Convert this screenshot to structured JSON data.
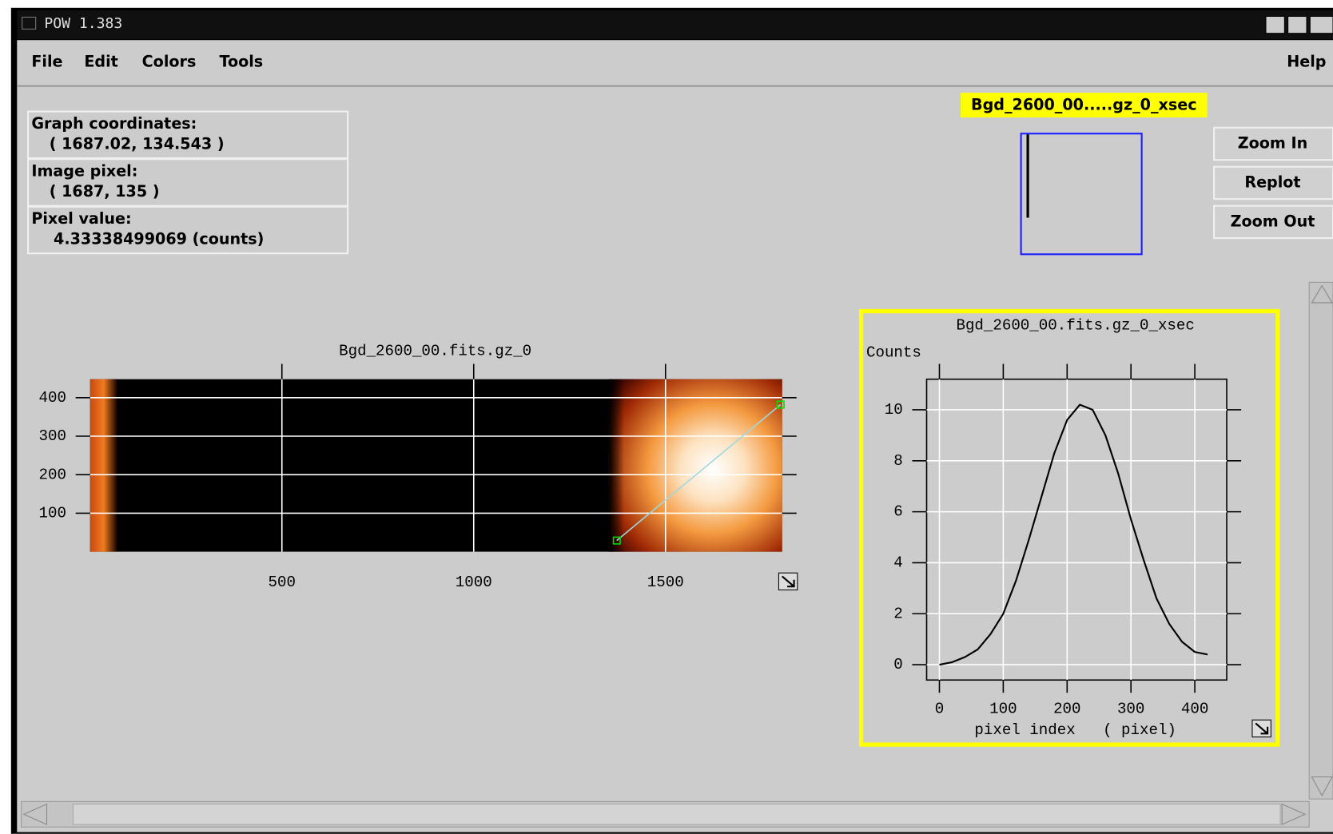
{
  "window": {
    "title": "POW 1.383"
  },
  "menu": [
    "File",
    "Edit",
    "Colors",
    "Tools"
  ],
  "help": "Help",
  "info": [
    {
      "label": "Graph coordinates:",
      "value": "( 1687.02, 134.543 )"
    },
    {
      "label": "Image pixel:",
      "value": "( 1687, 135 )"
    },
    {
      "label": "Pixel value:",
      "value": "4.33338499069 (counts)"
    }
  ],
  "preview_label": "Bgd_2600_00.....gz_0_xsec",
  "buttons": [
    "Zoom In",
    "Replot",
    "Zoom Out"
  ],
  "chart_data": [
    {
      "type": "image",
      "title": "Bgd_2600_00.fits.gz_0",
      "xlim": [
        0,
        1804
      ],
      "ylim": [
        0,
        448
      ],
      "xticks": [
        500,
        1000,
        1500
      ],
      "yticks": [
        100,
        200,
        300,
        400
      ],
      "grid": true,
      "line": {
        "x": [
          1373,
          1800
        ],
        "y": [
          29,
          382
        ],
        "color": "#9fd8e0"
      }
    },
    {
      "type": "line",
      "title": "Bgd_2600_00.fits.gz_0_xsec",
      "ylabel": "Counts",
      "xlabel": "pixel index   ( pixel)",
      "x": [
        0,
        20,
        40,
        60,
        80,
        100,
        120,
        140,
        160,
        180,
        200,
        220,
        240,
        260,
        280,
        300,
        320,
        340,
        360,
        380,
        400,
        420
      ],
      "values": [
        0.0,
        0.1,
        0.3,
        0.6,
        1.2,
        2.0,
        3.3,
        4.9,
        6.6,
        8.3,
        9.6,
        10.2,
        10.0,
        9.0,
        7.5,
        5.7,
        4.1,
        2.6,
        1.6,
        0.9,
        0.5,
        0.4
      ],
      "color": "#000000",
      "xlim": [
        -20,
        450
      ],
      "ylim": [
        -0.6,
        11.2
      ],
      "xticks": [
        0,
        100,
        200,
        300,
        400
      ],
      "yticks": [
        0,
        2,
        4,
        6,
        8,
        10
      ],
      "grid": true
    }
  ]
}
